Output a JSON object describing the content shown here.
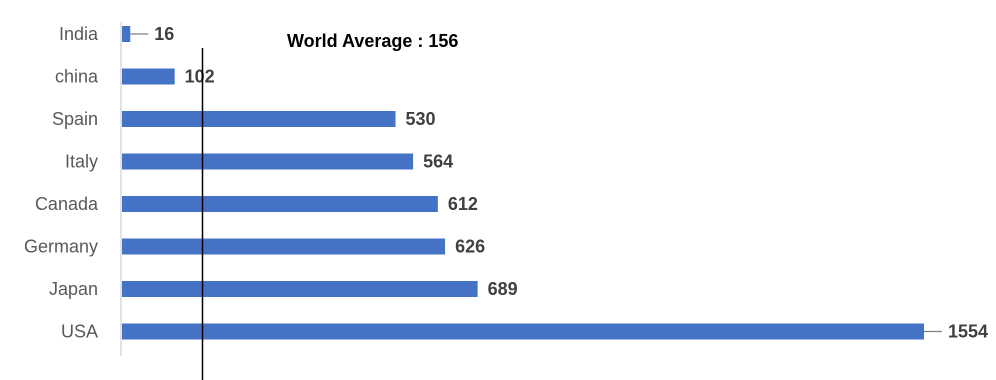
{
  "chart_data": {
    "type": "bar",
    "orientation": "horizontal",
    "categories": [
      "India",
      "china",
      "Spain",
      "Italy",
      "Canada",
      "Germany",
      "Japan",
      "USA"
    ],
    "values": [
      16,
      102,
      530,
      564,
      612,
      626,
      689,
      1554
    ],
    "value_labels": [
      "16",
      "102",
      "530",
      "564",
      "612",
      "626",
      "689",
      "1554"
    ],
    "xlim": [
      0,
      1554
    ],
    "reference_line": {
      "value": 156,
      "label": "World Average : 156"
    },
    "grid": false,
    "legend": "none",
    "colors": {
      "bar": "#4472C4",
      "axis": "#D9D9D9",
      "reference_line": "#000000",
      "category_text": "#595959",
      "value_text": "#404040"
    }
  }
}
